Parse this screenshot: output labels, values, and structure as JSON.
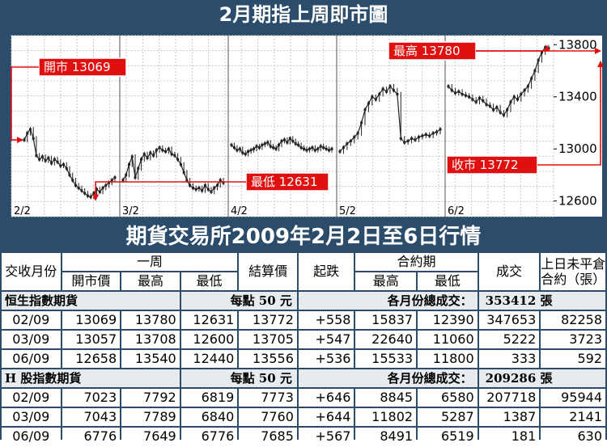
{
  "chart_data": {
    "type": "candlestick-line",
    "title": "2月期指上周即市圖",
    "y_ticks": [
      13800,
      13400,
      13000,
      12600
    ],
    "ylim": [
      12480,
      13870
    ],
    "x_ticks": [
      "2/2",
      "3/2",
      "4/2",
      "5/2",
      "6/2"
    ],
    "grid": true,
    "color": "#222222",
    "annotations": [
      {
        "label": "開市 13069",
        "value": 13069
      },
      {
        "label": "最高 13780",
        "value": 13780
      },
      {
        "label": "最低 12631",
        "value": 12631
      },
      {
        "label": "收市 13772",
        "value": 13772
      }
    ],
    "series": [
      {
        "day": "2/2",
        "values": [
          13069,
          13120,
          13150,
          13080,
          12950,
          12920,
          12940,
          12910,
          12930,
          12890,
          12920,
          12900,
          12870,
          12880,
          12850,
          12800,
          12760,
          12720,
          12700,
          12680,
          12660,
          12640,
          12631,
          12660,
          12690,
          12670,
          12700,
          12720,
          12740,
          12760,
          12780
        ]
      },
      {
        "day": "3/2",
        "values": [
          12760,
          12800,
          12880,
          12940,
          12780,
          12850,
          12920,
          12960,
          12930,
          12970,
          12950,
          12990,
          13010,
          12990,
          12980,
          13000,
          12960,
          12950,
          12920,
          12880,
          12820,
          12760,
          12720,
          12700,
          12690,
          12700,
          12680,
          12720,
          12690,
          12670,
          12700,
          12720,
          12760,
          12740
        ]
      },
      {
        "day": "4/2",
        "values": [
          13030,
          13010,
          12990,
          13000,
          12970,
          12960,
          12980,
          12990,
          13000,
          13020,
          13010,
          13030,
          13040,
          13050,
          13020,
          13010,
          13000,
          13030,
          13060,
          13070,
          13050,
          13080,
          13060,
          13040,
          13030,
          13010,
          13000,
          12990,
          13000,
          13010,
          12990,
          13000,
          13020,
          13010,
          13000,
          12990,
          13000
        ]
      },
      {
        "day": "5/2",
        "values": [
          12980,
          13010,
          13040,
          13060,
          13090,
          13120,
          13200,
          13300,
          13350,
          13400,
          13380,
          13420,
          13460,
          13440,
          13480,
          13450,
          13420,
          13080,
          13050,
          13060,
          13080,
          13070,
          13090,
          13100,
          13110,
          13100,
          13120,
          13130,
          13150
        ]
      },
      {
        "day": "6/2",
        "values": [
          13480,
          13450,
          13430,
          13440,
          13420,
          13410,
          13400,
          13380,
          13360,
          13390,
          13370,
          13340,
          13330,
          13300,
          13320,
          13280,
          13260,
          13300,
          13360,
          13400,
          13380,
          13420,
          13450,
          13480,
          13540,
          13600,
          13680,
          13740,
          13780,
          13772
        ]
      }
    ]
  },
  "table": {
    "title": "期貨交易所2009年2月2日至6日行情",
    "headers": {
      "month": "交收月份",
      "week": "一周",
      "open": "開市價",
      "high": "最高",
      "low": "最低",
      "settle": "結算價",
      "change": "起跌",
      "contract": "合約期",
      "c_high": "最高",
      "c_low": "最低",
      "volume": "成交",
      "oi_line1": "上日未平倉",
      "oi_line2": "合約（張）"
    },
    "sections": [
      {
        "name": "恒生指數期貨",
        "unit": "每點 50 元",
        "total_label": "各月份總成交：",
        "total": "353412 張",
        "rows": [
          [
            "02/09",
            "13069",
            "13780",
            "12631",
            "13772",
            "+558",
            "15837",
            "12390",
            "347653",
            "82258"
          ],
          [
            "03/09",
            "13057",
            "13708",
            "12600",
            "13705",
            "+547",
            "22640",
            "11060",
            "5222",
            "3723"
          ],
          [
            "06/09",
            "12658",
            "13540",
            "12440",
            "13556",
            "+536",
            "15533",
            "11800",
            "333",
            "592"
          ]
        ]
      },
      {
        "name": "H 股指數期貨",
        "unit": "每點 50 元",
        "total_label": "各月份總成交：",
        "total": "209286 張",
        "rows": [
          [
            "02/09",
            "7023",
            "7792",
            "6819",
            "7773",
            "+646",
            "8845",
            "6580",
            "207718",
            "95944"
          ],
          [
            "03/09",
            "7043",
            "7789",
            "6840",
            "7760",
            "+644",
            "11802",
            "5287",
            "1387",
            "2141"
          ],
          [
            "06/09",
            "6776",
            "7649",
            "6776",
            "7685",
            "+567",
            "8491",
            "6519",
            "181",
            "630"
          ]
        ]
      }
    ]
  }
}
